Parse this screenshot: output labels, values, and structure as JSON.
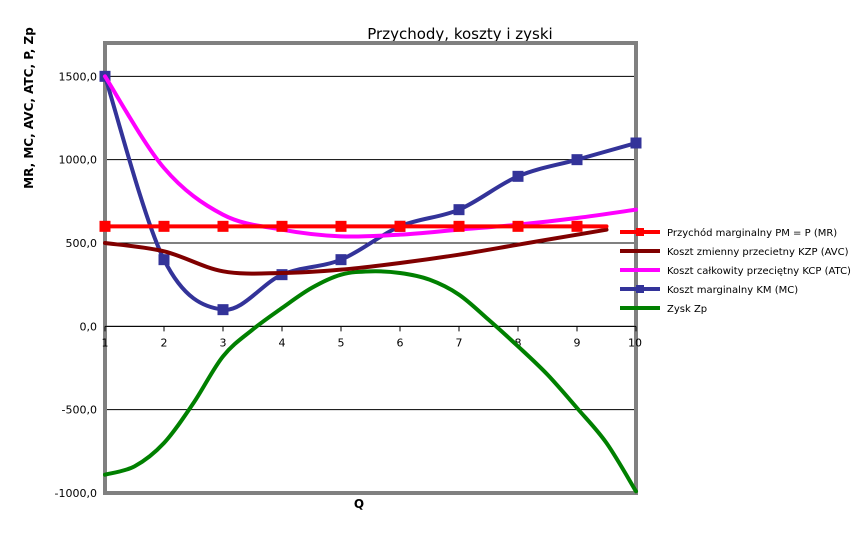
{
  "chart_data": {
    "type": "line",
    "title": "Przychody, koszty i zyski",
    "xlabel": "Q",
    "ylabel": "MR, MC, AVC, ATC, P, Zp",
    "x": [
      1,
      2,
      3,
      4,
      5,
      6,
      7,
      8,
      9,
      10
    ],
    "xlim": [
      1,
      10
    ],
    "ylim": [
      -1000,
      1700
    ],
    "yticks": [
      -1000,
      -500,
      0,
      500,
      1000,
      1500
    ],
    "ytick_labels": [
      "-1000,0",
      "-500,0",
      "0,0",
      "500,0",
      "1000,0",
      "1500,0"
    ],
    "xtick_labels": [
      "1",
      "2",
      "3",
      "4",
      "5",
      "6",
      "7",
      "8",
      "9",
      "10"
    ],
    "grid": "horizontal",
    "legend_position": "right",
    "series": [
      {
        "name": "Przychód marginalny PM = P (MR)",
        "color": "#ff0000",
        "x": [
          1,
          2,
          3,
          4,
          5,
          6,
          7,
          8,
          9,
          9.5
        ],
        "values": [
          600,
          600,
          600,
          600,
          600,
          600,
          600,
          600,
          600,
          600
        ],
        "markers": true
      },
      {
        "name": "Koszt zmienny przecietny KZP (AVC)",
        "color": "#800000",
        "x": [
          1,
          2,
          3,
          4,
          5,
          6,
          7,
          8,
          9,
          9.5
        ],
        "values": [
          500,
          450,
          330,
          320,
          340,
          380,
          430,
          490,
          550,
          580
        ],
        "markers": false
      },
      {
        "name": "Koszt całkowity przeciętny KCP (ATC)",
        "color": "#ff00ff",
        "x": [
          1,
          2,
          3,
          4,
          5,
          6,
          7,
          8,
          9,
          10
        ],
        "values": [
          1500,
          950,
          670,
          580,
          540,
          550,
          580,
          610,
          650,
          700
        ],
        "markers": false
      },
      {
        "name": "Koszt marginalny KM (MC)",
        "color": "#333399",
        "x": [
          1,
          2,
          3,
          4,
          5,
          6,
          7,
          8,
          9,
          10
        ],
        "values": [
          1500,
          400,
          100,
          310,
          400,
          600,
          700,
          900,
          1000,
          1100
        ],
        "markers": true
      },
      {
        "name": "Zysk Zp",
        "color": "#008000",
        "x": [
          1,
          1.5,
          2,
          2.5,
          3,
          3.5,
          4,
          4.5,
          5,
          5.5,
          6,
          6.5,
          7,
          7.5,
          8,
          8.5,
          9,
          9.5,
          10
        ],
        "values": [
          -890,
          -840,
          -700,
          -460,
          -180,
          -20,
          110,
          230,
          310,
          330,
          320,
          280,
          190,
          40,
          -120,
          -290,
          -490,
          -700,
          -990
        ],
        "markers": false
      }
    ]
  }
}
